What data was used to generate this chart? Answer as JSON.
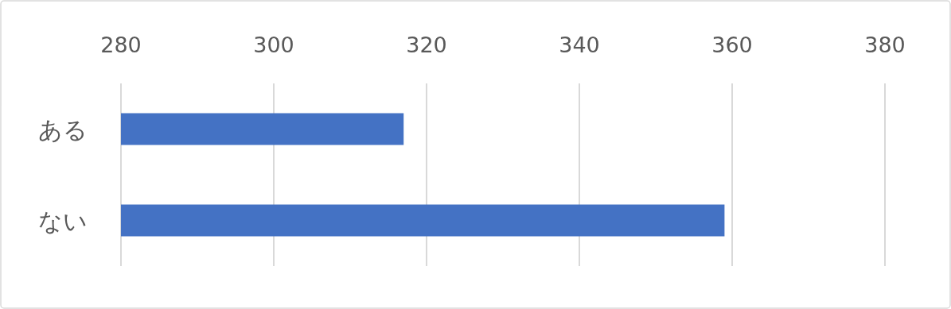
{
  "chart_data": {
    "type": "bar",
    "orientation": "horizontal",
    "categories": [
      "ある",
      "ない"
    ],
    "values": [
      317,
      359
    ],
    "color": "#4472c4",
    "xlim": [
      280,
      380
    ],
    "xticks": [
      280,
      300,
      320,
      340,
      360,
      380
    ],
    "grid": "x"
  }
}
